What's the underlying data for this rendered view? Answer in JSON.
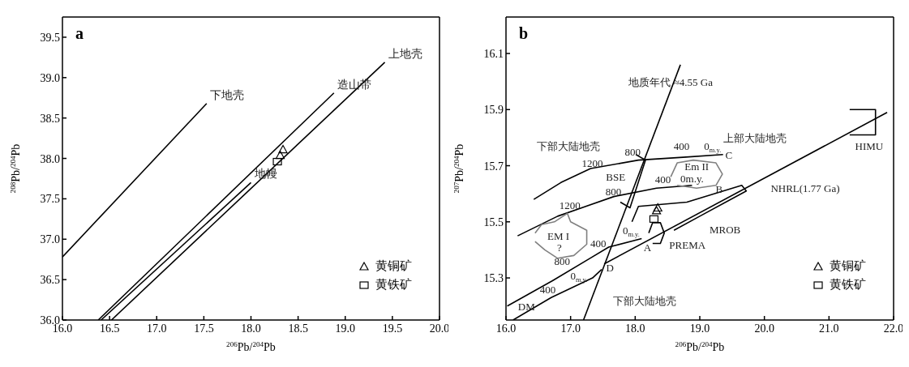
{
  "chart_data": [
    {
      "type": "line",
      "title": "a",
      "xlabel": "$^{206}$Pb/$^{204}$Pb",
      "ylabel": "$^{208}$Pb/$^{204}$Pb",
      "xlim": [
        16,
        20
      ],
      "ylim": [
        36,
        39.75
      ],
      "xticks": [
        {
          "value": 16,
          "label": "16.0"
        },
        16.5,
        {
          "value": 17,
          "label": "17.0"
        },
        17.5,
        {
          "value": 18,
          "label": "18.0"
        },
        18.5,
        {
          "value": 19,
          "label": "19.0"
        },
        19.5,
        {
          "value": 20,
          "label": "20.0"
        }
      ],
      "yticks": [
        {
          "value": 36,
          "label": "36.0"
        },
        36.5,
        {
          "value": 37,
          "label": "37.0"
        },
        37.5,
        {
          "value": 38,
          "label": "38.0"
        },
        38.5,
        {
          "value": 39,
          "label": "39.0"
        },
        39.5
      ],
      "legend": "bottom right",
      "series": [
        {
          "name": "下地壳",
          "color": "#000000",
          "x": [
            16,
            17.53
          ],
          "values": [
            36.78,
            38.68
          ]
        },
        {
          "name": "造山带",
          "color": "#000000",
          "x": [
            16.38,
            18.88
          ],
          "values": [
            36,
            38.81
          ]
        },
        {
          "name": "上地壳",
          "color": "#000000",
          "x": [
            16.52,
            19.42
          ],
          "values": [
            36,
            39.19
          ]
        },
        {
          "name": "地幔",
          "color": "#000000",
          "x": [
            16.41,
            18.0
          ],
          "values": [
            36,
            37.7
          ]
        },
        {
          "type": "scatter",
          "name": "黄铜矿",
          "marker": "triangle",
          "color": "#000000",
          "x": [
            18.34,
            18.31
          ],
          "values": [
            38.11,
            38.04
          ]
        },
        {
          "type": "scatter",
          "name": "黄铁矿",
          "marker": "square",
          "color": "#000000",
          "x": [
            18.28
          ],
          "values": [
            37.96
          ]
        }
      ]
    },
    {
      "type": "line",
      "title": "b",
      "xlabel": "$^{206}$Pb/$^{204}$Pb",
      "ylabel": "$^{207}$Pb/$^{204}$Pb",
      "xlim": [
        16,
        22
      ],
      "ylim": [
        15.15,
        16.23
      ],
      "xticks": [
        {
          "value": 16,
          "label": "16.0"
        },
        {
          "value": 17,
          "label": "17.0"
        },
        {
          "value": 18,
          "label": "18.0"
        },
        {
          "value": 19,
          "label": "19.0"
        },
        {
          "value": 20,
          "label": "20.0"
        },
        {
          "value": 21,
          "label": "21.0"
        },
        {
          "value": 22,
          "label": "22.0"
        }
      ],
      "yticks": [
        15.3,
        15.5,
        15.7,
        15.9,
        16.1
      ],
      "legend": "bottom right",
      "series": [
        {
          "color": "#000000",
          "x": [
            17.2,
            18.7
          ],
          "values": [
            15.15,
            16.06
          ]
        },
        {
          "color": "#000000",
          "x": [
            17.52,
            21.9
          ],
          "values": [
            15.35,
            15.89
          ]
        },
        {
          "color": "#000000",
          "x": [
            16.43,
            16.85,
            17.31,
            18.05,
            18.74,
            19.36
          ],
          "values": [
            15.58,
            15.64,
            15.69,
            15.72,
            15.73,
            15.74
          ]
        },
        {
          "color": "#000000",
          "x": [
            16.18,
            16.8,
            17.67,
            18.33,
            18.88
          ],
          "values": [
            15.45,
            15.52,
            15.59,
            15.62,
            15.63
          ]
        },
        {
          "color": "#000000",
          "x": [
            16.02,
            16.72,
            17.3,
            17.59,
            18.1
          ],
          "values": [
            15.2,
            15.29,
            15.37,
            15.41,
            15.44
          ]
        },
        {
          "color": "#000000",
          "x": [
            16.11,
            16.7,
            17.34,
            17.48
          ],
          "values": [
            15.15,
            15.23,
            15.3,
            15.33
          ]
        },
        {
          "color": "#000000",
          "x": [
            17.95,
            18.05,
            18.8,
            19.65,
            19.72,
            19.0,
            18.6
          ],
          "values": [
            15.5,
            15.555,
            15.57,
            15.63,
            15.61,
            15.52,
            15.47
          ]
        },
        {
          "color": "#808080",
          "x": [
            16.45,
            16.55,
            16.75,
            16.95,
            17.0,
            17.25,
            17.25,
            17.05,
            16.8,
            16.6,
            16.45
          ],
          "values": [
            15.46,
            15.49,
            15.5,
            15.53,
            15.5,
            15.47,
            15.42,
            15.38,
            15.37,
            15.4,
            15.43
          ]
        },
        {
          "color": "#808080",
          "x": [
            18.55,
            18.65,
            18.9,
            19.25,
            19.35,
            19.25,
            18.95,
            18.65
          ],
          "values": [
            15.66,
            15.71,
            15.72,
            15.71,
            15.67,
            15.63,
            15.62,
            15.63
          ]
        },
        {
          "color": "#000000",
          "x": [
            21.32,
            21.72,
            21.72,
            21.32
          ],
          "values": [
            15.81,
            15.81,
            15.9,
            15.9
          ]
        },
        {
          "color": "#000000",
          "x": [
            18.21,
            18.27,
            18.39,
            18.45,
            18.39,
            18.27
          ],
          "values": [
            15.46,
            15.497,
            15.497,
            15.46,
            15.423,
            15.423
          ]
        },
        {
          "color": "#000000",
          "x": [
            17.77,
            17.92,
            18.16,
            18.01
          ],
          "values": [
            15.57,
            15.55,
            15.72,
            15.74
          ]
        },
        {
          "type": "scatter",
          "name": "黄铜矿",
          "marker": "triangle",
          "color": "#000000",
          "x": [
            18.35,
            18.33
          ],
          "values": [
            15.55,
            15.54
          ]
        },
        {
          "type": "scatter",
          "name": "黄铁矿",
          "marker": "square",
          "color": "#000000",
          "x": [
            18.29
          ],
          "values": [
            15.51
          ]
        }
      ],
      "annotations": [
        "地质年代 ≈4.55 Ga",
        "NHRL(1.77 Ga)",
        "HIMU",
        "上部大陆地壳",
        "下部大陆地壳",
        "1200",
        "800",
        "400",
        "0$_{m.y.}$",
        "C",
        "BSE",
        "Em II",
        "0m.y.",
        "B",
        "800",
        "400",
        "1200",
        "EM I",
        "?",
        "MROB",
        "PREMA",
        "0$_{m.y.}$",
        "A",
        "400",
        "800",
        "0$_{m.y.}$",
        "D",
        "400",
        "DM",
        "下部大陆地壳"
      ]
    }
  ]
}
